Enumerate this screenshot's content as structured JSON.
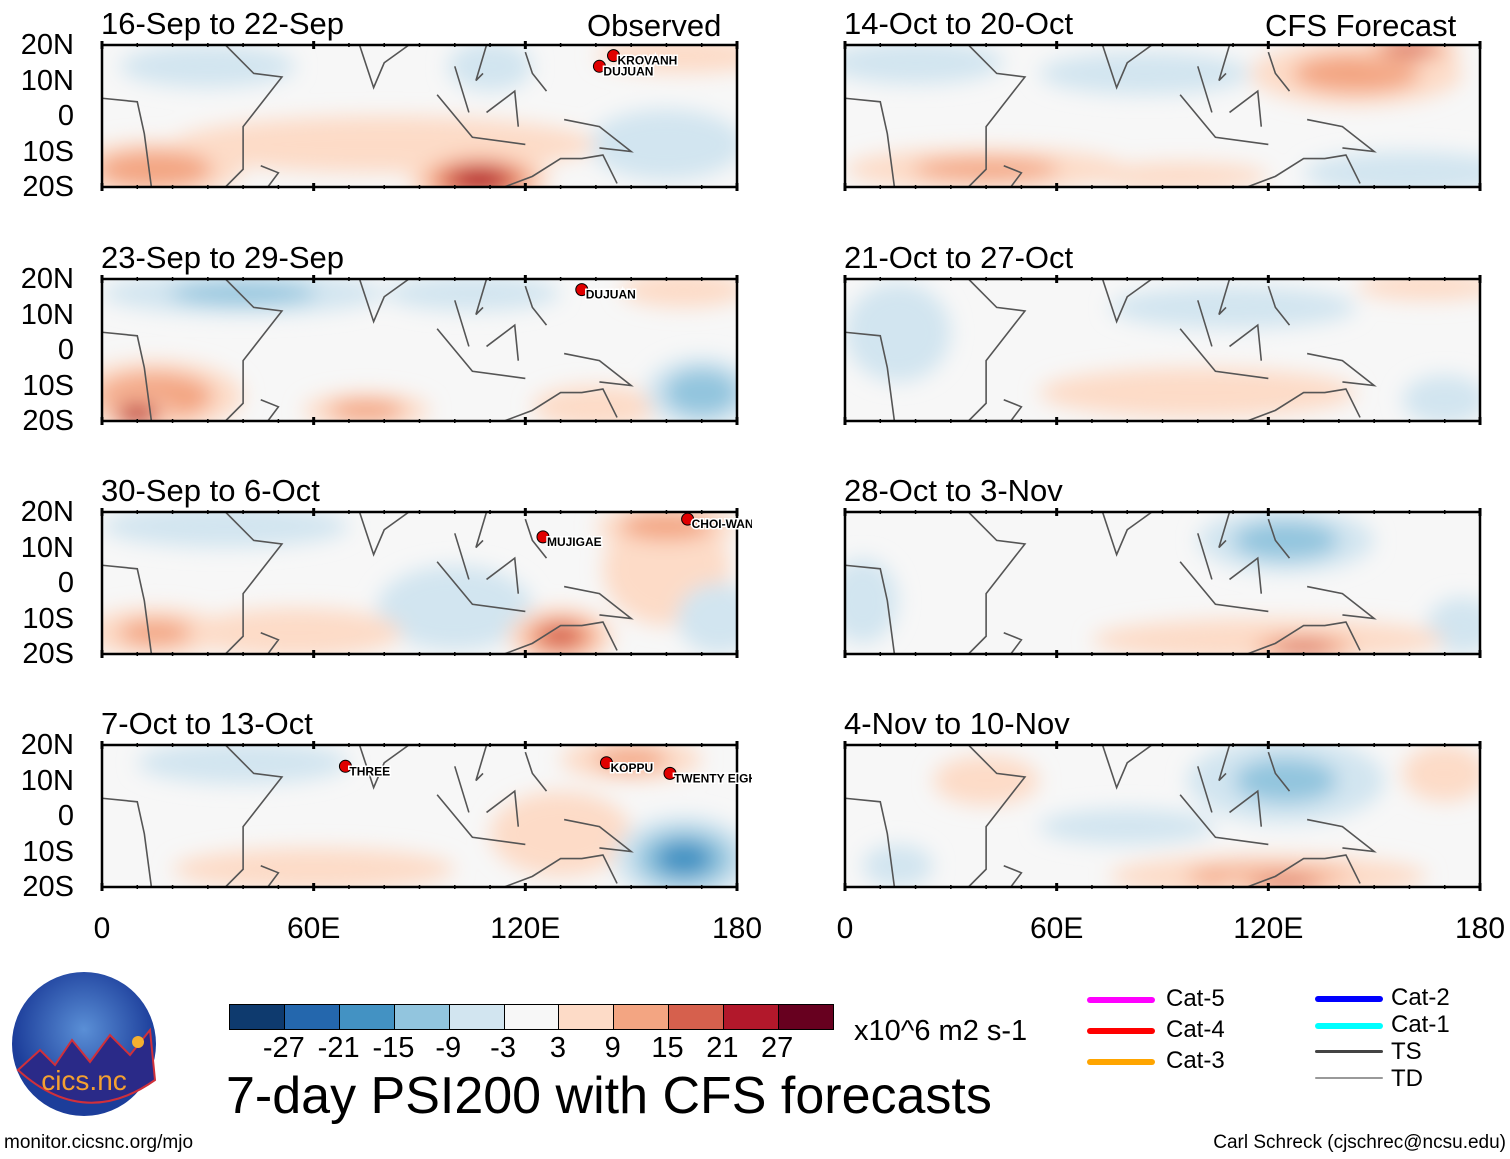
{
  "header": {
    "left_label": "Observed",
    "right_label": "CFS Forecast"
  },
  "panels": [
    {
      "title": "16-Sep to 22-Sep",
      "storms": [
        {
          "name": "KROVANH",
          "lon": 145,
          "lat": 17
        },
        {
          "name": "DUJUAN",
          "lon": 141,
          "lat": 14
        }
      ],
      "blobs": [
        [
          30,
          14,
          25,
          6,
          -6
        ],
        [
          110,
          14,
          12,
          7,
          -7
        ],
        [
          160,
          -8,
          22,
          10,
          -5
        ],
        [
          15,
          -15,
          25,
          8,
          14
        ],
        [
          107,
          -18,
          20,
          8,
          22
        ],
        [
          80,
          -8,
          60,
          8,
          5
        ],
        [
          165,
          17,
          25,
          5,
          7
        ]
      ]
    },
    {
      "title": "23-Sep to 29-Sep",
      "storms": [
        {
          "name": "DUJUAN",
          "lon": 136,
          "lat": 17
        }
      ],
      "blobs": [
        [
          40,
          16,
          40,
          6,
          -10
        ],
        [
          105,
          16,
          25,
          5,
          -5
        ],
        [
          170,
          -12,
          16,
          10,
          -14
        ],
        [
          15,
          -13,
          25,
          10,
          14
        ],
        [
          10,
          -18,
          10,
          5,
          24
        ],
        [
          75,
          -17,
          18,
          5,
          12
        ],
        [
          140,
          -16,
          18,
          6,
          6
        ],
        [
          165,
          17,
          18,
          5,
          6
        ]
      ]
    },
    {
      "title": "30-Sep to 6-Oct",
      "storms": [
        {
          "name": "MUJIGAE",
          "lon": 125,
          "lat": 13
        },
        {
          "name": "CHOI-WAN",
          "lon": 166,
          "lat": 18
        }
      ],
      "blobs": [
        [
          35,
          16,
          35,
          6,
          -6
        ],
        [
          100,
          -7,
          22,
          12,
          -6
        ],
        [
          160,
          4,
          18,
          16,
          6
        ],
        [
          160,
          16,
          20,
          6,
          14
        ],
        [
          130,
          -15,
          15,
          8,
          16
        ],
        [
          55,
          -14,
          30,
          7,
          8
        ],
        [
          15,
          -14,
          20,
          7,
          10
        ],
        [
          175,
          -10,
          12,
          10,
          -6
        ]
      ]
    },
    {
      "title": "7-Oct to 13-Oct",
      "storms": [
        {
          "name": "THREE",
          "lon": 69,
          "lat": 14
        },
        {
          "name": "KOPPU",
          "lon": 143,
          "lat": 15
        },
        {
          "name": "TWENTY EIGHT",
          "lon": 161,
          "lat": 12
        }
      ],
      "blobs": [
        [
          40,
          15,
          30,
          6,
          -5
        ],
        [
          165,
          -12,
          20,
          12,
          -16
        ],
        [
          150,
          16,
          20,
          6,
          10
        ],
        [
          60,
          -15,
          40,
          6,
          6
        ],
        [
          130,
          -5,
          20,
          12,
          4
        ]
      ]
    },
    {
      "title": "14-Oct to 20-Oct",
      "storms": [],
      "blobs": [
        [
          20,
          15,
          25,
          6,
          -7
        ],
        [
          85,
          12,
          30,
          6,
          -4
        ],
        [
          145,
          12,
          30,
          9,
          12
        ],
        [
          160,
          19,
          15,
          4,
          18
        ],
        [
          40,
          -15,
          40,
          6,
          10
        ],
        [
          160,
          -16,
          30,
          6,
          -8
        ],
        [
          95,
          -17,
          25,
          4,
          8
        ]
      ]
    },
    {
      "title": "21-Oct to 27-Oct",
      "storms": [],
      "blobs": [
        [
          15,
          5,
          15,
          14,
          -5
        ],
        [
          110,
          12,
          35,
          6,
          -5
        ],
        [
          165,
          18,
          20,
          4,
          8
        ],
        [
          100,
          -12,
          45,
          7,
          5
        ],
        [
          170,
          -14,
          12,
          7,
          -5
        ]
      ]
    },
    {
      "title": "28-Oct to 3-Nov",
      "storms": [],
      "blobs": [
        [
          125,
          12,
          25,
          9,
          -12
        ],
        [
          5,
          -5,
          10,
          12,
          -4
        ],
        [
          120,
          -16,
          50,
          6,
          8
        ],
        [
          130,
          -18,
          20,
          4,
          16
        ],
        [
          175,
          -12,
          10,
          8,
          -5
        ]
      ]
    },
    {
      "title": "4-Nov to 10-Nov",
      "storms": [],
      "blobs": [
        [
          125,
          10,
          28,
          12,
          -10
        ],
        [
          40,
          10,
          15,
          7,
          6
        ],
        [
          170,
          12,
          12,
          8,
          5
        ],
        [
          120,
          -17,
          45,
          6,
          10
        ],
        [
          125,
          -19,
          18,
          3,
          18
        ],
        [
          15,
          -14,
          10,
          6,
          -4
        ],
        [
          80,
          -3,
          25,
          5,
          -4
        ]
      ]
    }
  ],
  "axes": {
    "lat_labels": [
      "20N",
      "10N",
      "0",
      "10S",
      "20S"
    ],
    "lon_labels": [
      "0",
      "60E",
      "120E",
      "180"
    ]
  },
  "colorbar": {
    "ticks": [
      "-27",
      "-21",
      "-15",
      "-9",
      "-3",
      "3",
      "9",
      "15",
      "21",
      "27"
    ],
    "colors": [
      "#0e3a6e",
      "#2467ad",
      "#4392c3",
      "#92c5de",
      "#d2e5f0",
      "#f7f7f7",
      "#fddbc7",
      "#f3a582",
      "#d6604d",
      "#b2182b",
      "#67001f"
    ],
    "units": "x10^6 m2 s-1"
  },
  "title": "7-day PSI200 with CFS forecasts",
  "legend": [
    {
      "label": "Cat-5",
      "color": "#ff00ff"
    },
    {
      "label": "Cat-4",
      "color": "#ff0000"
    },
    {
      "label": "Cat-3",
      "color": "#ffa500"
    },
    {
      "label": "Cat-2",
      "color": "#0000ff"
    },
    {
      "label": "Cat-1",
      "color": "#00ffff"
    },
    {
      "label": "TS",
      "color": "#444444"
    },
    {
      "label": "TD",
      "color": "#999999"
    }
  ],
  "logo_text": "cics.nc",
  "footer": {
    "left": "monitor.cicsnc.org/mjo",
    "right": "Carl Schreck (cjschrec@ncsu.edu)"
  }
}
